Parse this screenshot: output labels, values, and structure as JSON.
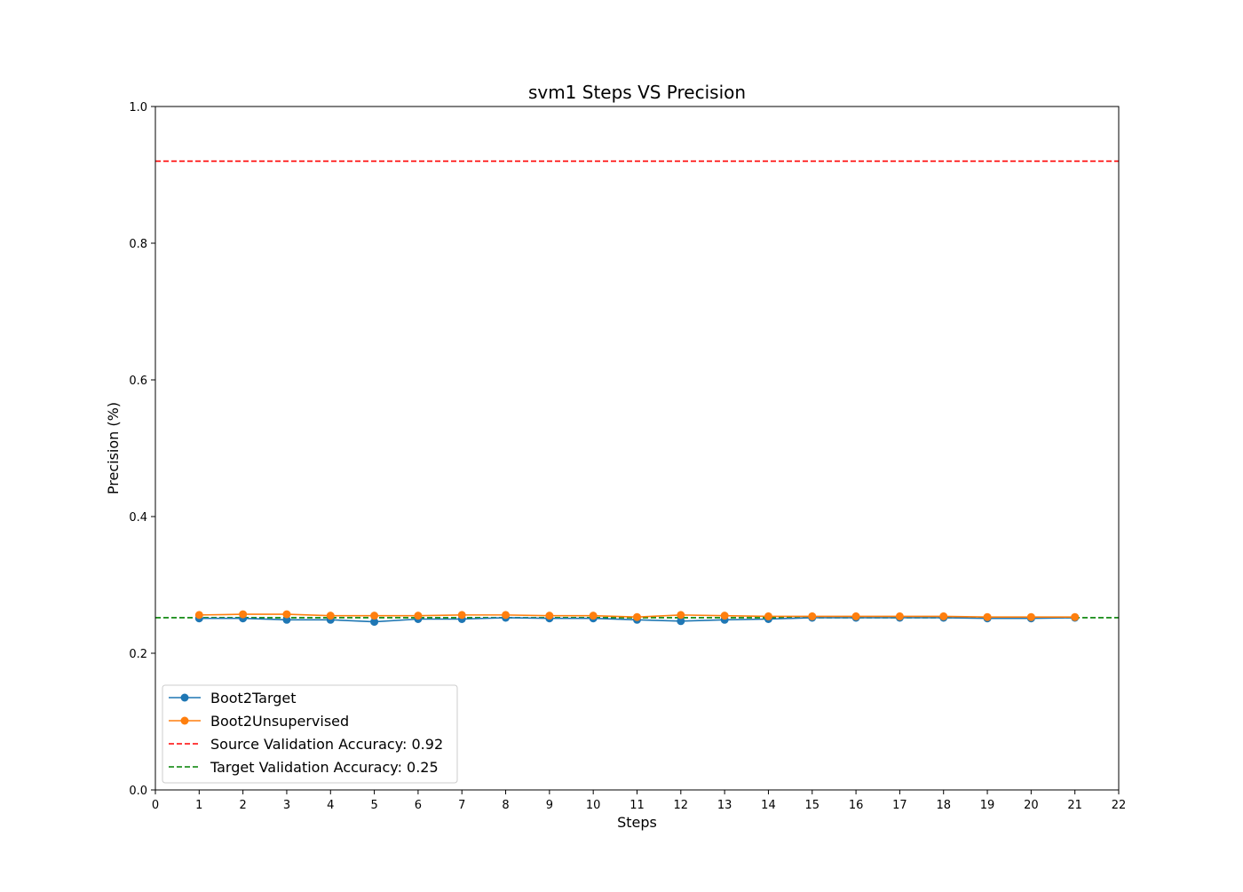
{
  "chart_data": {
    "type": "line",
    "title": "svm1 Steps VS Precision",
    "xlabel": "Steps",
    "ylabel": "Precision (%)",
    "xlim": [
      0,
      22
    ],
    "ylim": [
      0.0,
      1.0
    ],
    "xticks": [
      0,
      1,
      2,
      3,
      4,
      5,
      6,
      7,
      8,
      9,
      10,
      11,
      12,
      13,
      14,
      15,
      16,
      17,
      18,
      19,
      20,
      21,
      22
    ],
    "yticks": [
      "0.0",
      "0.2",
      "0.4",
      "0.6",
      "0.8",
      "1.0"
    ],
    "grid": false,
    "legend_position": "lower-left",
    "x": [
      1,
      2,
      3,
      4,
      5,
      6,
      7,
      8,
      9,
      10,
      11,
      12,
      13,
      14,
      15,
      16,
      17,
      18,
      19,
      20,
      21
    ],
    "series": [
      {
        "name": "Boot2Target",
        "color": "#1f77b4",
        "marker": "circle",
        "values": [
          0.251,
          0.251,
          0.249,
          0.249,
          0.246,
          0.25,
          0.25,
          0.252,
          0.251,
          0.251,
          0.249,
          0.247,
          0.249,
          0.25,
          0.252,
          0.252,
          0.252,
          0.252,
          0.251,
          0.251,
          0.252
        ]
      },
      {
        "name": "Boot2Unsupervised",
        "color": "#ff7f0e",
        "marker": "circle",
        "values": [
          0.256,
          0.257,
          0.257,
          0.255,
          0.255,
          0.255,
          0.256,
          0.256,
          0.255,
          0.255,
          0.253,
          0.256,
          0.255,
          0.254,
          0.254,
          0.254,
          0.254,
          0.254,
          0.253,
          0.253,
          0.253
        ]
      }
    ],
    "reference_lines": [
      {
        "name": "Source Validation Accuracy: 0.92",
        "value": 0.92,
        "color": "#ff0000",
        "style": "dashed"
      },
      {
        "name": "Target Validation Accuracy: 0.25",
        "value": 0.252,
        "color": "#008000",
        "style": "dashed"
      }
    ]
  }
}
